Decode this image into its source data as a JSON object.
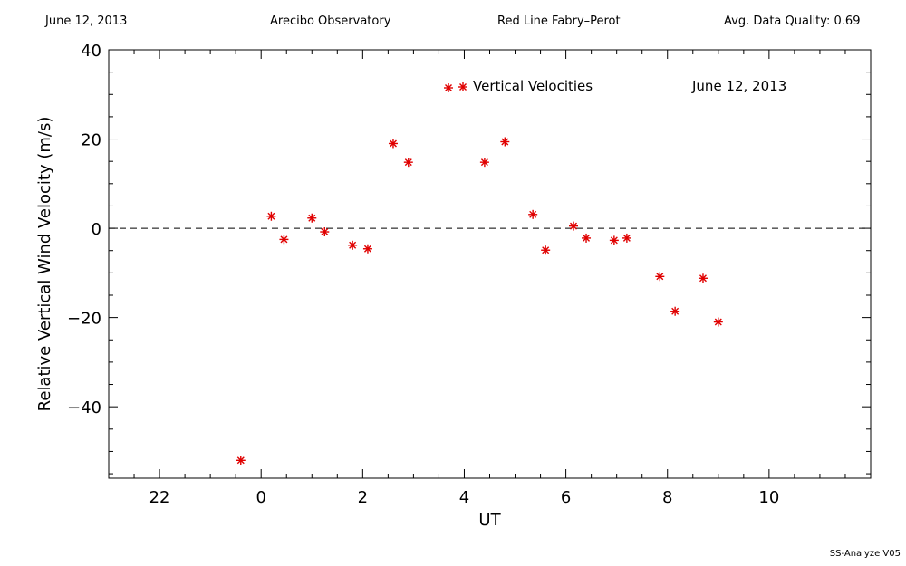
{
  "header": {
    "date": "June 12, 2013",
    "observatory": "Arecibo Observatory",
    "instrument": "Red Line Fabry–Perot",
    "quality": "Avg. Data Quality: 0.69"
  },
  "footer": {
    "version": "SS-Analyze V05"
  },
  "chart_data": {
    "type": "scatter",
    "title": "",
    "xlabel": "UT",
    "ylabel": "Relative Vertical Wind Velocity (m/s)",
    "xlim": [
      21,
      36
    ],
    "ylim": [
      -56,
      40
    ],
    "xticks": [
      22,
      24,
      26,
      28,
      30,
      32,
      34
    ],
    "xtick_labels": [
      "22",
      "0",
      "2",
      "4",
      "6",
      "8",
      "10"
    ],
    "yticks": [
      -40,
      -20,
      0,
      20,
      40
    ],
    "ytick_labels": [
      "−40",
      "−20",
      "0",
      "20",
      "40"
    ],
    "zero_line": "dashed",
    "marker": "asterisk",
    "marker_color": "#e00000",
    "legend": {
      "label": "Vertical Velocities",
      "placement": "top-center"
    },
    "annotation": "June 12, 2013",
    "series": [
      {
        "name": "Vertical Velocities",
        "x": [
          23.6,
          24.2,
          24.45,
          25.0,
          25.25,
          25.8,
          26.1,
          26.6,
          26.9,
          28.4,
          28.8,
          29.35,
          29.6,
          30.15,
          30.4,
          30.95,
          31.2,
          31.85,
          32.15,
          32.7,
          33.0
        ],
        "y": [
          -52,
          2.7,
          -2.5,
          2.3,
          -0.8,
          -3.8,
          -4.6,
          19,
          14.8,
          14.8,
          19.4,
          3.1,
          -4.9,
          0.5,
          -2.2,
          -2.7,
          -2.2,
          -10.8,
          -18.6,
          -11.2,
          -21
        ]
      }
    ]
  }
}
